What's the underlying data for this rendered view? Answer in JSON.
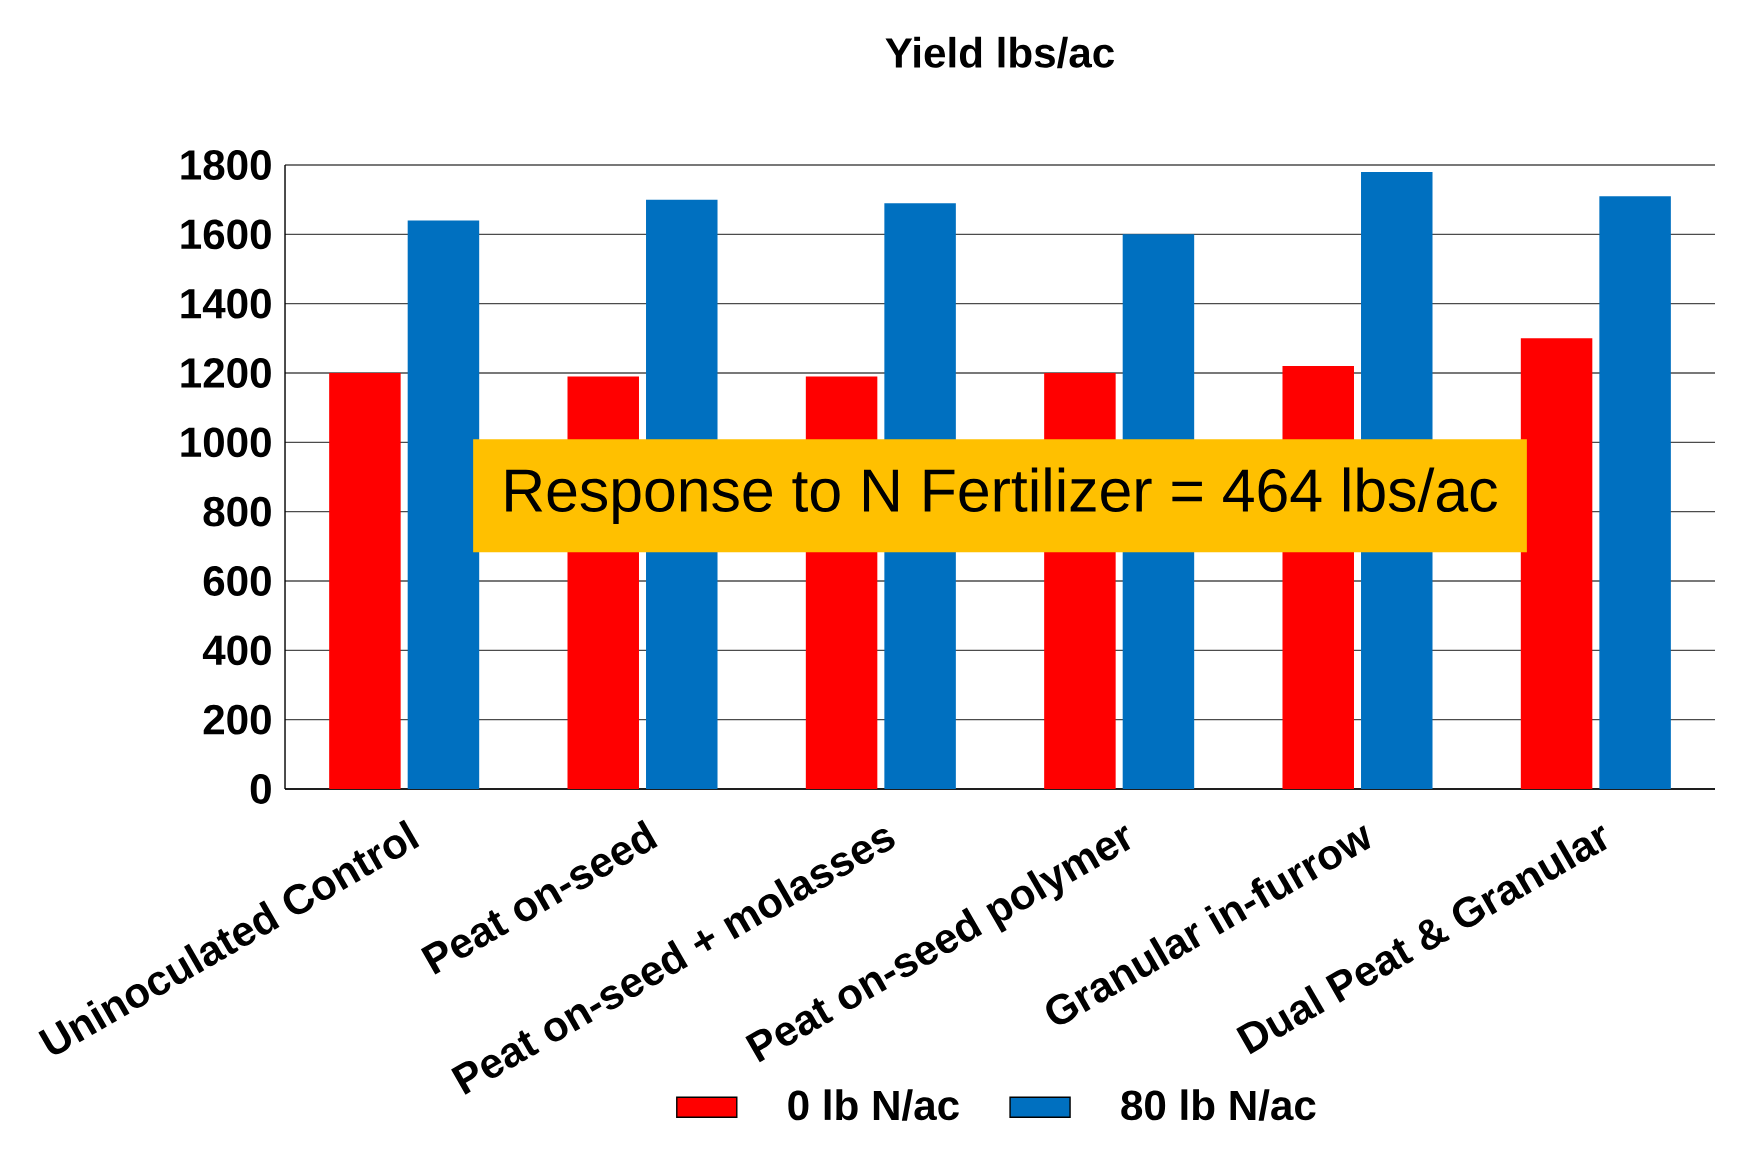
{
  "chart_data": {
    "type": "bar",
    "title": "Yield lbs/ac",
    "categories": [
      "Uninoculated Control",
      "Peat on-seed",
      "Peat on-seed + molasses",
      "Peat on-seed polymer",
      "Granular in-furrow",
      "Dual Peat & Granular"
    ],
    "series": [
      {
        "name": "0 lb N/ac",
        "color": "#ff0000",
        "values": [
          1200,
          1190,
          1190,
          1200,
          1220,
          1300
        ]
      },
      {
        "name": "80 lb N/ac",
        "color": "#0070c0",
        "values": [
          1640,
          1700,
          1690,
          1600,
          1780,
          1710
        ]
      }
    ],
    "ylim": [
      0,
      1800
    ],
    "yticks": [
      0,
      200,
      400,
      600,
      800,
      1000,
      1200,
      1400,
      1600,
      1800
    ],
    "grid": "y",
    "legend": "bottom",
    "annotations": [
      "Response to N Fertilizer = 464 lbs/ac"
    ]
  }
}
